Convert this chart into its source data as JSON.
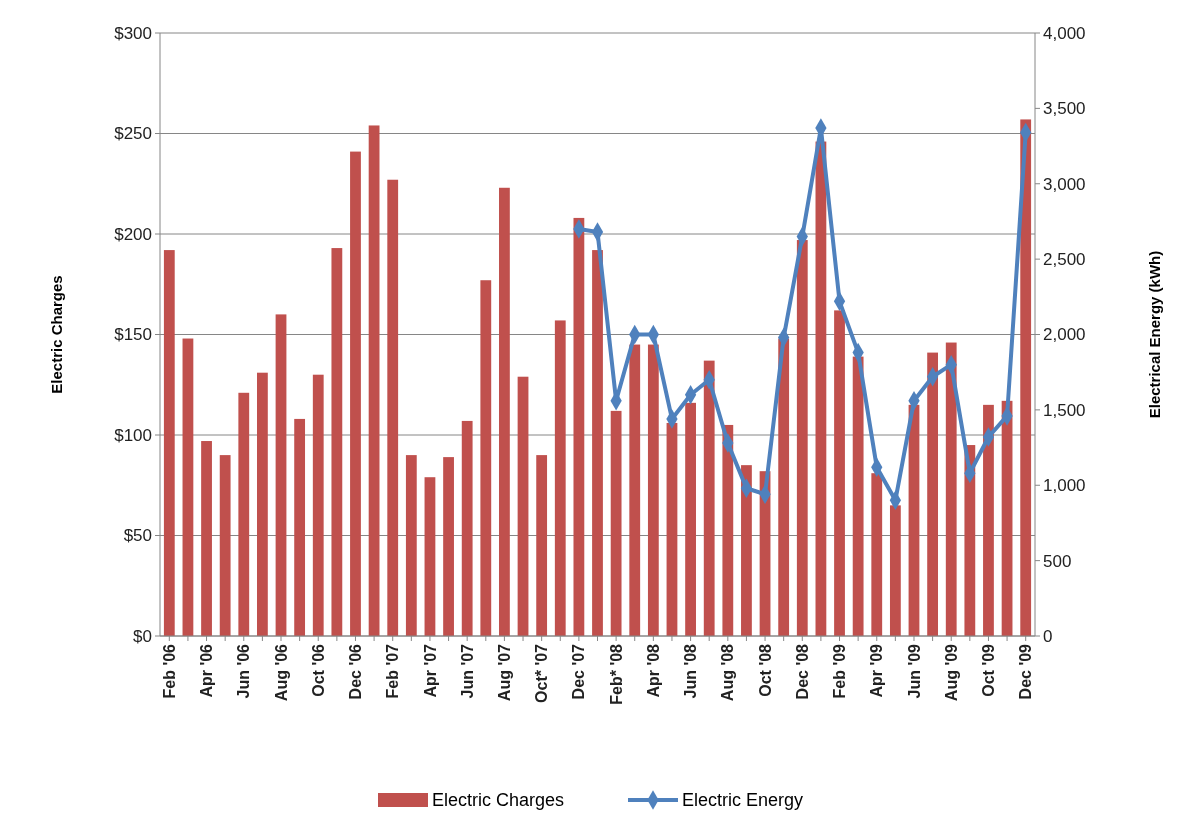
{
  "chart_data": {
    "type": "bar",
    "categories": [
      "Feb '06",
      null,
      "Apr '06",
      null,
      "Jun '06",
      null,
      "Aug '06",
      null,
      "Oct '06",
      null,
      "Dec '06",
      null,
      "Feb '07",
      null,
      "Apr '07",
      null,
      "Jun '07",
      null,
      "Aug '07",
      null,
      "Oct* '07",
      null,
      "Dec '07",
      null,
      "Feb* '08",
      null,
      "Apr '08",
      null,
      "Jun '08",
      null,
      "Aug '08",
      null,
      "Oct '08",
      null,
      "Dec '08",
      null,
      "Feb '09",
      null,
      "Apr '09",
      null,
      "Jun '09",
      null,
      "Aug '09",
      null,
      "Oct '09",
      null,
      "Dec '09"
    ],
    "series": [
      {
        "name": "Electric Charges",
        "color": "#c0504d",
        "values": [
          192,
          148,
          97,
          90,
          121,
          131,
          160,
          108,
          130,
          193,
          241,
          254,
          227,
          90,
          79,
          89,
          107,
          177,
          223,
          129,
          90,
          157,
          208,
          192,
          112,
          145,
          145,
          106,
          116,
          137,
          105,
          85,
          82,
          148,
          197,
          246,
          162,
          139,
          81,
          65,
          115,
          141,
          146,
          95,
          115,
          117,
          257
        ]
      },
      {
        "name": "Electric Energy",
        "type": "line",
        "axis": "y2",
        "color": "#4f81bd",
        "marker": "diamond",
        "values": [
          null,
          null,
          null,
          null,
          null,
          null,
          null,
          null,
          null,
          null,
          null,
          null,
          null,
          null,
          null,
          null,
          null,
          null,
          null,
          null,
          null,
          null,
          2700,
          2680,
          1560,
          2000,
          2000,
          1440,
          1600,
          1700,
          1280,
          980,
          940,
          1980,
          2650,
          3370,
          2220,
          1880,
          1120,
          900,
          1560,
          1720,
          1800,
          1080,
          1320,
          1460,
          3340
        ]
      }
    ],
    "ylabel": "Electric Charges",
    "y2label": "Electrical Energy (kWh)",
    "ylim": [
      0,
      300
    ],
    "yticks": [
      {
        "value": 0,
        "label": "$0"
      },
      {
        "value": 50,
        "label": "$50"
      },
      {
        "value": 100,
        "label": "$100"
      },
      {
        "value": 150,
        "label": "$150"
      },
      {
        "value": 200,
        "label": "$200"
      },
      {
        "value": 250,
        "label": "$250"
      },
      {
        "value": 300,
        "label": "$300"
      }
    ],
    "y2lim": [
      0,
      4000
    ],
    "y2ticks": [
      0,
      500,
      {
        "value": 1000,
        "label": "1,000"
      },
      {
        "value": 1500,
        "label": "1,500"
      },
      {
        "value": 2000,
        "label": "2,000"
      },
      {
        "value": 2500,
        "label": "2,500"
      },
      {
        "value": 3000,
        "label": "3,000"
      },
      {
        "value": 3500,
        "label": "3,500"
      },
      {
        "value": 4000,
        "label": "4,000"
      }
    ],
    "grid": "y",
    "legend": "bottom"
  }
}
